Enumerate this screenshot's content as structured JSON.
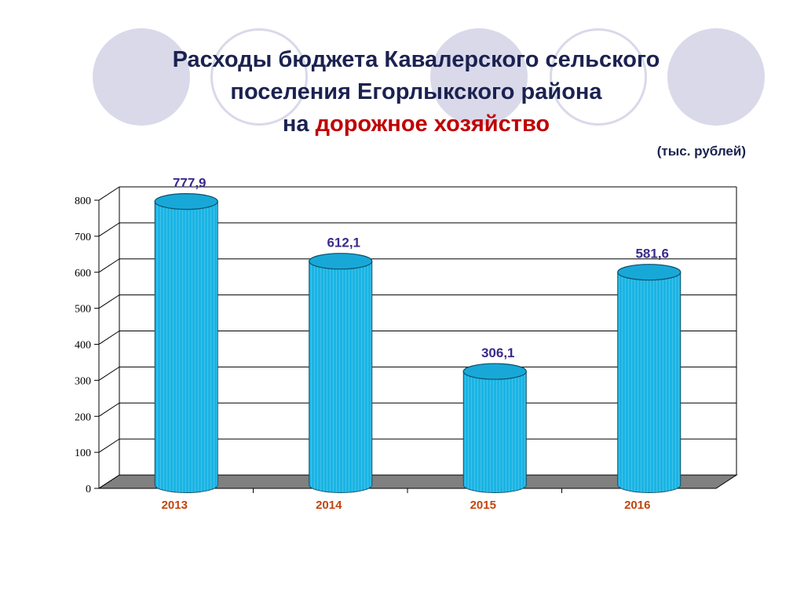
{
  "title": {
    "line1": "Расходы бюджета Кавалерского сельского",
    "line2": "поселения Егорлыкского района",
    "line3_prefix": "на ",
    "line3_accent": "дорожное хозяйство"
  },
  "units_label": "(тыс. рублей)",
  "colors": {
    "title": "#1b2250",
    "accent": "#c00000",
    "bar": "#1ab4e4",
    "value_label": "#3b2a8c",
    "category_label": "#c0460f",
    "floor": "#808080",
    "decor": "#d9d9ea"
  },
  "chart_data": {
    "type": "bar",
    "categories": [
      "2013",
      "2014",
      "2015",
      "2016"
    ],
    "values": [
      777.9,
      612.1,
      306.1,
      581.6
    ],
    "value_labels": [
      "777,9",
      "612,1",
      "306,1",
      "581,6"
    ],
    "y_ticks": [
      "0",
      "100",
      "200",
      "300",
      "400",
      "500",
      "600",
      "700",
      "800"
    ],
    "ylim": [
      0,
      800
    ],
    "grid": true,
    "style": "3d-cylinder"
  }
}
